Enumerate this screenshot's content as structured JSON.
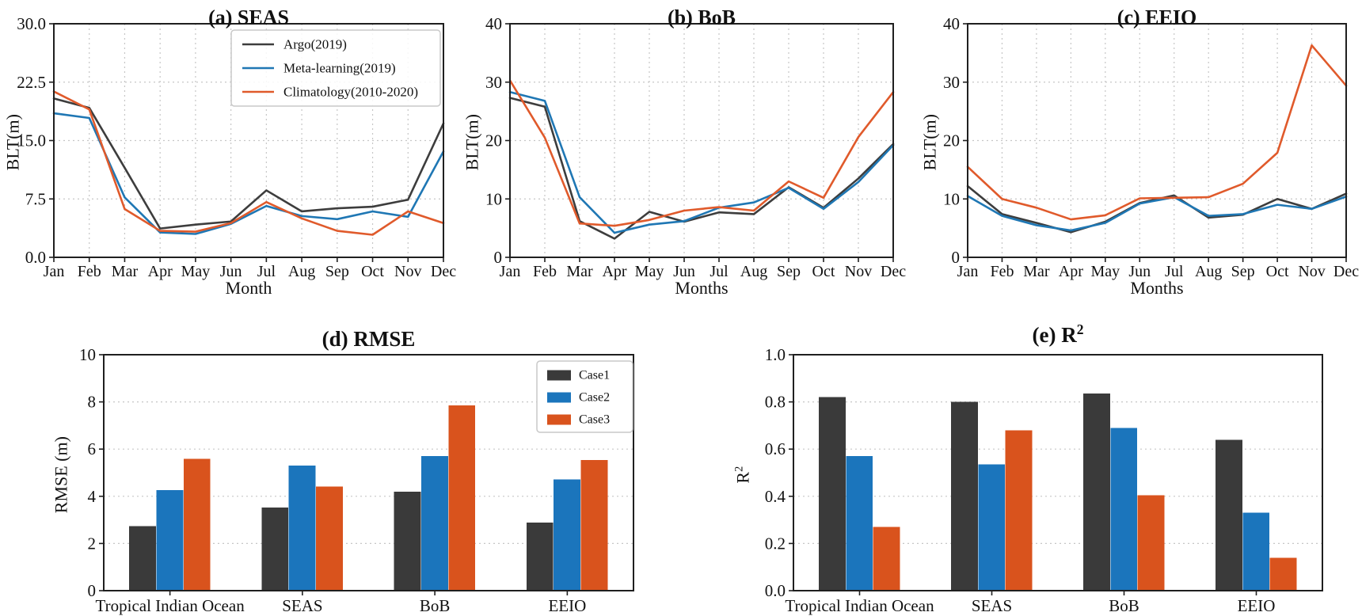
{
  "figure": {
    "background": "#ffffff",
    "grid_color": "#c6c6c6",
    "frame_color": "#1f1f1f",
    "text_color": "#111111"
  },
  "chart_data": [
    {
      "id": "seas",
      "type": "line",
      "title": "(a) SEAS",
      "xlabel": "Month",
      "ylabel": "BLT(m)",
      "categories": [
        "Jan",
        "Feb",
        "Mar",
        "Apr",
        "May",
        "Jun",
        "Jul",
        "Aug",
        "Sep",
        "Oct",
        "Nov",
        "Dec"
      ],
      "ylim": [
        0,
        30
      ],
      "yticks": [
        0,
        7.5,
        15,
        22.5,
        30
      ],
      "ytick_labels": [
        "0.0",
        "7.5",
        "15.0",
        "22.5",
        "30.0"
      ],
      "grid": true,
      "legend_visible": true,
      "legend_position": "top-right",
      "series": [
        {
          "name": "Argo(2019)",
          "color": "#3d3d3d",
          "values": [
            20.4,
            19.2,
            11.5,
            3.7,
            4.2,
            4.6,
            8.6,
            5.9,
            6.3,
            6.5,
            7.4,
            17.2
          ]
        },
        {
          "name": "Meta-learning(2019)",
          "color": "#1f77b4",
          "values": [
            18.5,
            17.9,
            7.7,
            3.2,
            3.0,
            4.3,
            6.6,
            5.3,
            4.9,
            5.9,
            5.2,
            13.6
          ]
        },
        {
          "name": "Climatology(2010-2020)",
          "color": "#e05a2b",
          "values": [
            21.3,
            19.0,
            6.2,
            3.4,
            3.3,
            4.4,
            7.1,
            5.0,
            3.4,
            2.9,
            5.9,
            4.4
          ]
        }
      ]
    },
    {
      "id": "bob",
      "type": "line",
      "title": "(b) BoB",
      "xlabel": "Months",
      "ylabel": "BLT(m)",
      "categories": [
        "Jan",
        "Feb",
        "Mar",
        "Apr",
        "May",
        "Jun",
        "Jul",
        "Aug",
        "Sep",
        "Oct",
        "Nov",
        "Dec"
      ],
      "ylim": [
        0,
        40
      ],
      "yticks": [
        0,
        10,
        20,
        30,
        40
      ],
      "ytick_labels": [
        "0",
        "10",
        "20",
        "30",
        "40"
      ],
      "grid": true,
      "legend_visible": false,
      "series": [
        {
          "name": "Argo(2019)",
          "color": "#3d3d3d",
          "values": [
            27.3,
            25.8,
            6.2,
            3.2,
            7.8,
            6.1,
            7.7,
            7.4,
            12.0,
            8.5,
            13.5,
            19.4
          ]
        },
        {
          "name": "Meta-learning(2019)",
          "color": "#1f77b4",
          "values": [
            28.3,
            26.8,
            10.3,
            4.2,
            5.6,
            6.2,
            8.5,
            9.4,
            11.9,
            8.3,
            12.9,
            19.2
          ]
        },
        {
          "name": "Climatology(2010-2020)",
          "color": "#e05a2b",
          "values": [
            30.3,
            20.5,
            5.8,
            5.4,
            6.4,
            8.0,
            8.6,
            8.0,
            13.0,
            10.2,
            20.6,
            28.3
          ]
        }
      ]
    },
    {
      "id": "eeio",
      "type": "line",
      "title": "(c) EEIO",
      "xlabel": "Months",
      "ylabel": "BLT(m)",
      "categories": [
        "Jan",
        "Feb",
        "Mar",
        "Apr",
        "May",
        "Jun",
        "Jul",
        "Aug",
        "Sep",
        "Oct",
        "Nov",
        "Dec"
      ],
      "ylim": [
        0,
        40
      ],
      "yticks": [
        0,
        10,
        20,
        30,
        40
      ],
      "ytick_labels": [
        "0",
        "10",
        "20",
        "30",
        "40"
      ],
      "grid": true,
      "legend_visible": false,
      "series": [
        {
          "name": "Argo(2019)",
          "color": "#3d3d3d",
          "values": [
            12.2,
            7.4,
            5.9,
            4.3,
            6.1,
            9.3,
            10.6,
            6.8,
            7.3,
            10.0,
            8.3,
            10.9
          ]
        },
        {
          "name": "Meta-learning(2019)",
          "color": "#1f77b4",
          "values": [
            10.5,
            7.1,
            5.5,
            4.6,
            5.9,
            9.2,
            10.3,
            7.1,
            7.4,
            9.0,
            8.3,
            10.4
          ]
        },
        {
          "name": "Climatology(2010-2020)",
          "color": "#e05a2b",
          "values": [
            15.5,
            10.0,
            8.5,
            6.5,
            7.2,
            10.1,
            10.2,
            10.3,
            12.6,
            17.9,
            36.3,
            29.4
          ]
        }
      ]
    },
    {
      "id": "rmse",
      "type": "bar",
      "title": "(d) RMSE",
      "xlabel": "",
      "ylabel": "RMSE (m)",
      "categories": [
        "Tropical Indian Ocean",
        "SEAS",
        "BoB",
        "EEIO"
      ],
      "ylim": [
        0,
        10
      ],
      "yticks": [
        0,
        2,
        4,
        6,
        8,
        10
      ],
      "ytick_labels": [
        "0",
        "2",
        "4",
        "6",
        "8",
        "10"
      ],
      "grid": true,
      "legend_visible": true,
      "legend_position": "top-right",
      "series": [
        {
          "name": "Case1",
          "color": "#3a3a3a",
          "values": [
            2.73,
            3.52,
            4.19,
            2.89
          ]
        },
        {
          "name": "Case2",
          "color": "#1b75bc",
          "values": [
            4.27,
            5.31,
            5.7,
            4.72
          ]
        },
        {
          "name": "Case3",
          "color": "#d9531d",
          "values": [
            5.58,
            4.42,
            7.85,
            5.54
          ]
        }
      ]
    },
    {
      "id": "r2",
      "type": "bar",
      "title": "(e) R",
      "title_sup": "2",
      "xlabel": "",
      "ylabel": "R",
      "ylabel_sup": "2",
      "categories": [
        "Tropical Indian Ocean",
        "SEAS",
        "BoB",
        "EEIO"
      ],
      "ylim": [
        0,
        1
      ],
      "yticks": [
        0,
        0.2,
        0.4,
        0.6,
        0.8,
        1.0
      ],
      "ytick_labels": [
        "0.0",
        "0.2",
        "0.4",
        "0.6",
        "0.8",
        "1.0"
      ],
      "grid": true,
      "legend_visible": false,
      "series": [
        {
          "name": "Case1",
          "color": "#3a3a3a",
          "values": [
            0.82,
            0.8,
            0.835,
            0.64
          ]
        },
        {
          "name": "Case2",
          "color": "#1b75bc",
          "values": [
            0.57,
            0.535,
            0.69,
            0.33
          ]
        },
        {
          "name": "Case3",
          "color": "#d9531d",
          "values": [
            0.27,
            0.68,
            0.405,
            0.14
          ]
        }
      ]
    }
  ]
}
